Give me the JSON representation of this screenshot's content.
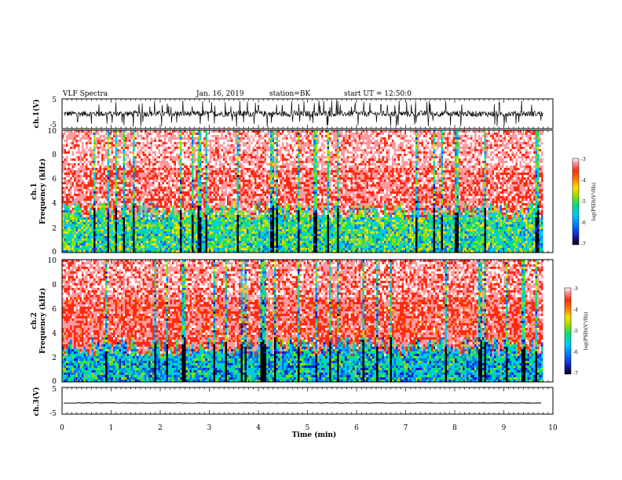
{
  "header": {
    "title": "VLF Spectra",
    "date": "Jan. 16, 2019",
    "station": "station=BK",
    "start": "start UT = 12:50:0"
  },
  "colors": {
    "trace": "#000000",
    "colormap": [
      "#000000",
      "#1020c0",
      "#0070ff",
      "#00c8ff",
      "#00e07a",
      "#8ee000",
      "#ffe000",
      "#ff7a00",
      "#ff2a10",
      "#ff9aa0",
      "#ffffff"
    ]
  },
  "chart_data": [
    {
      "type": "line",
      "name": "ch1-waveform",
      "ylabel": "ch.1(V)",
      "ylim": [
        -5,
        5
      ],
      "yticks": [
        "5",
        "-5"
      ],
      "xlim": [
        0,
        9.8
      ],
      "description_values": "broadband noisy waveform about 0 V, typical swing ±2 V with frequent spikes to ±5 V"
    },
    {
      "type": "heatmap",
      "name": "ch1-spectrogram",
      "ylabel_line1": "ch.1",
      "ylabel_line2": "Frequency (kHz)",
      "ylim": [
        0,
        10
      ],
      "yticks": [
        "0",
        "2",
        "4",
        "6",
        "8",
        "10"
      ],
      "xlim": [
        0,
        9.8
      ],
      "colorbar": {
        "label": "log(PSD)(V²/Hz)",
        "range": [
          -7,
          -3
        ],
        "ticks": [
          "-3",
          "-4",
          "-5",
          "-6",
          "-7"
        ]
      },
      "regions": [
        {
          "freq_range": [
            0,
            3.5
          ],
          "typical_log_psd": -5.4
        },
        {
          "freq_range": [
            3.5,
            10
          ],
          "typical_log_psd": -3.5
        }
      ]
    },
    {
      "type": "heatmap",
      "name": "ch2-spectrogram",
      "ylabel_line1": "ch.2",
      "ylabel_line2": "Frequency (kHz)",
      "ylim": [
        0,
        10
      ],
      "yticks": [
        "0",
        "2",
        "4",
        "6",
        "8",
        "10"
      ],
      "xlim": [
        0,
        9.8
      ],
      "colorbar": {
        "label": "log(PSD)(V²/Hz)",
        "range": [
          -7,
          -3
        ],
        "ticks": [
          "-3",
          "-4",
          "-5",
          "-6",
          "-7"
        ]
      },
      "regions": [
        {
          "freq_range": [
            0,
            3
          ],
          "typical_log_psd": -5.8
        },
        {
          "freq_range": [
            3,
            10
          ],
          "typical_log_psd": -3.6
        }
      ]
    },
    {
      "type": "line",
      "name": "ch3-waveform",
      "ylabel": "ch.3(V)",
      "ylim": [
        -5,
        5
      ],
      "yticks": [
        "5",
        "-5"
      ],
      "xlim": [
        0,
        9.8
      ],
      "values_constant": -1
    }
  ],
  "xaxis": {
    "label": "Time (min)",
    "range": [
      0,
      10
    ],
    "ticks": [
      "0",
      "1",
      "2",
      "3",
      "4",
      "5",
      "6",
      "7",
      "8",
      "9",
      "10"
    ]
  }
}
